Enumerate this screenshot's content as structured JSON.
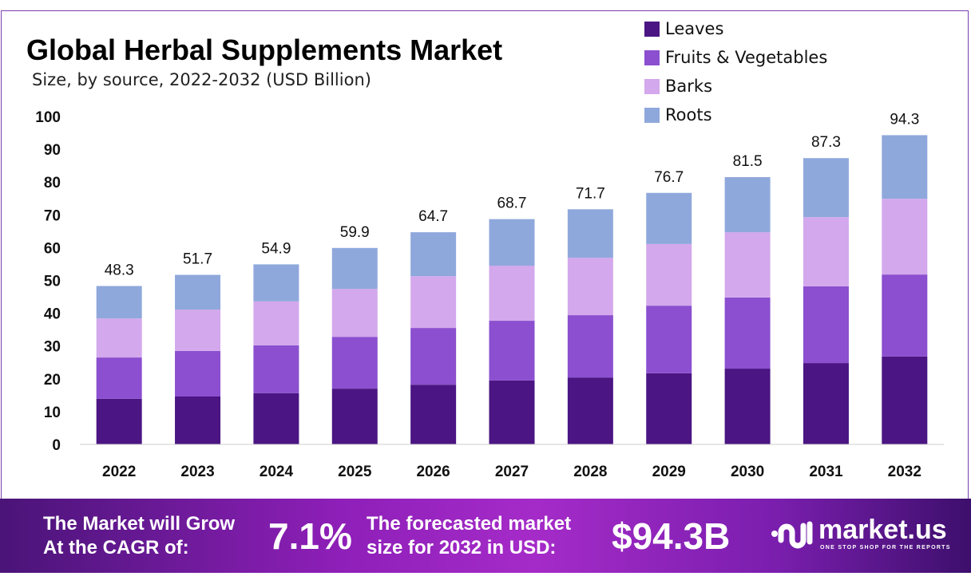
{
  "chart_data": {
    "type": "bar",
    "stacked": true,
    "title": "Global Herbal Supplements Market",
    "subtitle": "Size, by source, 2022-2032 (USD Billion)",
    "categories": [
      "2022",
      "2023",
      "2024",
      "2025",
      "2026",
      "2027",
      "2028",
      "2029",
      "2030",
      "2031",
      "2032"
    ],
    "series": [
      {
        "name": "Leaves",
        "color": "#4b1583",
        "values": [
          13.9,
          14.6,
          15.6,
          17.0,
          18.2,
          19.5,
          20.4,
          21.7,
          23.1,
          24.8,
          26.8
        ]
      },
      {
        "name": "Fruits & Vegetables",
        "color": "#8b4fcf",
        "values": [
          12.6,
          13.9,
          14.6,
          15.8,
          17.3,
          18.2,
          19.0,
          20.6,
          21.7,
          23.4,
          25.0
        ]
      },
      {
        "name": "Barks",
        "color": "#d3a8ec",
        "values": [
          11.9,
          12.6,
          13.4,
          14.6,
          15.8,
          16.8,
          17.5,
          18.8,
          19.9,
          21.1,
          23.1
        ]
      },
      {
        "name": "Roots",
        "color": "#8fa8dc",
        "values": [
          9.9,
          10.6,
          11.3,
          12.5,
          13.4,
          14.2,
          14.8,
          15.6,
          16.8,
          18.0,
          19.4
        ]
      }
    ],
    "totals": [
      "48.3",
      "51.7",
      "54.9",
      "59.9",
      "64.7",
      "68.7",
      "71.7",
      "76.7",
      "81.5",
      "87.3",
      "94.3"
    ],
    "yticks": [
      0,
      10,
      20,
      30,
      40,
      50,
      60,
      70,
      80,
      90,
      100
    ],
    "ylim": [
      0,
      100
    ],
    "xlabel": "",
    "ylabel": "",
    "grid": false,
    "legend_position": "top-right"
  },
  "footer": {
    "cagr_label_1": "The Market will Grow",
    "cagr_label_2": "At the CAGR of:",
    "cagr_value": "7.1%",
    "forecast_label_1": "The forecasted market",
    "forecast_label_2": "size for 2032 in USD:",
    "forecast_value": "$94.3B",
    "brand": "market.us",
    "tagline": "ONE STOP SHOP FOR THE REPORTS"
  }
}
